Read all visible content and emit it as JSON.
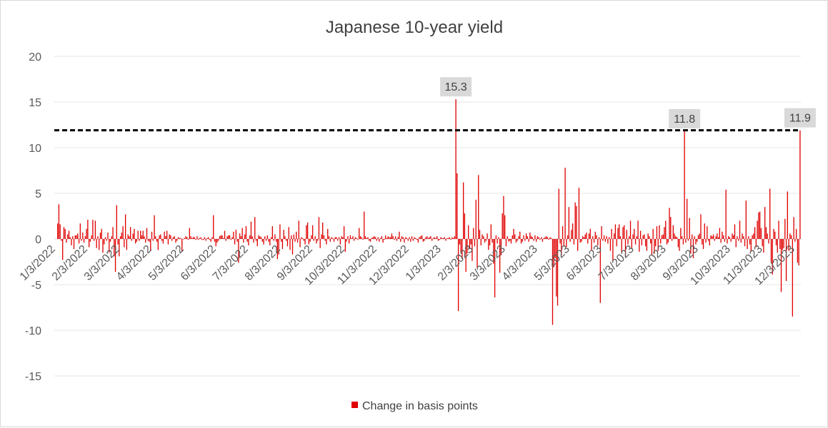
{
  "chart_data": {
    "type": "bar",
    "title": "Japanese 10-year yield",
    "xlabel": "",
    "ylabel": "",
    "ylim": [
      -15,
      20
    ],
    "yticks": [
      20,
      15,
      10,
      5,
      0,
      -5,
      -10,
      -15
    ],
    "grid": true,
    "legend_position": "bottom",
    "x_tick_labels": [
      "1/3/2022",
      "2/3/2022",
      "3/3/2022",
      "4/3/2022",
      "5/3/2022",
      "6/3/2022",
      "7/3/2022",
      "8/3/2022",
      "9/3/2022",
      "10/3/2022",
      "11/3/2022",
      "12/3/2022",
      "1/3/2023",
      "2/3/2023",
      "3/3/2023",
      "4/3/2023",
      "5/3/2023",
      "6/3/2023",
      "7/3/2023",
      "8/3/2023",
      "9/3/2023",
      "10/3/2023",
      "11/3/2023",
      "12/3/2023"
    ],
    "series": [
      {
        "name": "Change in basis points",
        "color": "#e00000",
        "values": [
          1.7,
          3.8,
          1.6,
          -0.2,
          -2.3,
          1.3,
          1.1,
          -0.4,
          0.5,
          0.9,
          0.2,
          -0.7,
          0.3,
          -1.1,
          0.4,
          0.4,
          0.6,
          -0.5,
          1.7,
          -0.2,
          0.7,
          -0.4,
          0.3,
          1.1,
          2.1,
          -0.9,
          -0.3,
          0.4,
          2.1,
          -0.2,
          2.0,
          -1.0,
          0.3,
          -1.2,
          0.7,
          1.1,
          -1.5,
          -0.6,
          0.2,
          -0.2,
          0.7,
          -1.5,
          -0.3,
          0.3,
          1.3,
          -1.9,
          -3.6,
          3.7,
          -0.6,
          -1.9,
          0.3,
          0.7,
          1.4,
          -0.9,
          2.7,
          -1.2,
          0.5,
          0.3,
          1.3,
          -0.2,
          0.6,
          1.1,
          -0.5,
          -0.3,
          0.9,
          -0.2,
          0.9,
          0.4,
          0.9,
          0.3,
          -0.4,
          1.2,
          -0.2,
          -0.3,
          -1.3,
          0.8,
          -0.2,
          2.6,
          0.3,
          -0.3,
          -1.2,
          0.4,
          0.5,
          -0.2,
          -0.5,
          0.8,
          0.3,
          0.9,
          -0.6,
          0.5,
          0.4,
          -0.2,
          0.2,
          0.3,
          -0.4,
          -0.2,
          0.2,
          0.1,
          0.1,
          -1.4,
          0.0,
          0.1,
          0.3,
          0.2,
          -0.1,
          1.2,
          0.3,
          0.1,
          0.2,
          0.2,
          -0.1,
          0.3,
          -0.1,
          0.1,
          0.2,
          -0.1,
          -0.1,
          0.2,
          -0.2,
          0.1,
          0.2,
          -0.1,
          -0.3,
          0.2,
          2.6,
          -0.3,
          -0.8,
          -0.4,
          -0.2,
          0.3,
          0.4,
          0.4,
          0.1,
          0.9,
          -0.2,
          0.3,
          0.4,
          0.4,
          -0.1,
          0.2,
          0.8,
          -0.6,
          1.0,
          -0.3,
          -2.6,
          0.6,
          0.3,
          1.2,
          -0.4,
          0.5,
          1.4,
          -0.3,
          -0.7,
          0.4,
          1.9,
          0.3,
          -0.4,
          2.4,
          -0.2,
          -0.8,
          0.4,
          0.3,
          0.2,
          -0.3,
          -0.6,
          0.3,
          -0.2,
          0.4,
          -0.3,
          -0.7,
          0.2,
          1.4,
          -0.2,
          0.5,
          -0.3,
          -2.2,
          -1.7,
          1.6,
          -0.3,
          -1.1,
          1.0,
          0.3,
          -0.2,
          -0.8,
          1.3,
          -1.2,
          0.4,
          -1.7,
          0.5,
          -0.3,
          0.8,
          -0.4,
          2.0,
          -0.9,
          0.2,
          0.1,
          -0.2,
          -0.6,
          1.5,
          1.8,
          -0.6,
          -0.3,
          0.4,
          1.5,
          -0.2,
          0.3,
          -0.5,
          -0.2,
          2.4,
          -1.0,
          0.5,
          1.8,
          0.4,
          -0.2,
          -0.6,
          1.1,
          0.3,
          -0.3,
          0.2,
          0.1,
          -0.3,
          0.2,
          0.2,
          -0.2,
          0.2,
          -0.6,
          0.3,
          0.2,
          1.4,
          -1.4,
          -0.3,
          0.3,
          -0.5,
          0.4,
          0.1,
          0.3,
          -0.2,
          0.2,
          0.1,
          -0.1,
          1.2,
          0.3,
          0.2,
          -0.1,
          3.0,
          0.3,
          0.1,
          0.2,
          -0.2,
          -0.3,
          0.1,
          0.2,
          0.3,
          0.2,
          -0.2,
          0.2,
          -0.3,
          0.1,
          0.3,
          -0.4,
          -0.1,
          0.4,
          0.1,
          0.3,
          0.2,
          0.2,
          0.6,
          0.3,
          -0.1,
          0.3,
          -0.2,
          0.2,
          0.8,
          -0.3,
          0.3,
          0.2,
          -0.4,
          0.2,
          0.1,
          -0.2,
          0.2,
          -0.3,
          0.3,
          -0.2,
          0.2,
          0.1,
          -0.1,
          -0.4,
          0.2,
          0.3,
          0.4,
          -0.3,
          -0.2,
          0.2,
          0.3,
          0.1,
          0.2,
          0.3,
          -0.2,
          0.1,
          0.2,
          0.1,
          0.3,
          -0.2,
          -0.1,
          0.2,
          0.1,
          0.1,
          0.2,
          -0.2,
          0.1,
          0.1,
          0.2,
          -0.1,
          0.2,
          0.1,
          0.3,
          15.3,
          7.2,
          -7.9,
          -0.6,
          -1.5,
          -2.2,
          6.2,
          2.8,
          -3.6,
          -1.6,
          1.5,
          -1.1,
          -0.6,
          -2.4,
          1.2,
          -0.8,
          4.3,
          -3.1,
          7.0,
          1.0,
          -0.7,
          0.5,
          0.3,
          -0.4,
          -0.2,
          0.6,
          -1.2,
          -0.7,
          1.6,
          -0.4,
          -2.7,
          -6.4,
          0.4,
          -0.5,
          0.2,
          -3.7,
          -1.8,
          2.8,
          4.7,
          2.6,
          -0.8,
          0.3,
          -0.3,
          -0.2,
          -0.5,
          0.4,
          1.1,
          0.5,
          -0.4,
          -0.2,
          0.3,
          0.8,
          -0.5,
          -0.3,
          0.4,
          -0.2,
          0.6,
          0.3,
          -0.3,
          0.7,
          0.3,
          0.2,
          -0.2,
          0.4,
          -0.3,
          0.3,
          0.2,
          -0.1,
          0.2,
          -0.3,
          0.1,
          0.2,
          0.3,
          0.2,
          -0.1,
          0.2,
          0.1,
          -9.4,
          -3.1,
          -2.1,
          -6.3,
          -7.3,
          5.5,
          -0.5,
          -1.8,
          1.4,
          -0.8,
          7.8,
          -0.9,
          0.4,
          3.5,
          -0.3,
          1.0,
          1.7,
          -0.6,
          4.0,
          3.6,
          -1.3,
          5.6,
          -0.4,
          -0.3,
          0.3,
          0.2,
          0.5,
          0.7,
          -0.5,
          0.6,
          1.1,
          -1.2,
          0.3,
          -0.4,
          0.8,
          0.4,
          -0.7,
          0.2,
          -7.0,
          1.4,
          -0.2,
          0.4,
          -0.3,
          0.3,
          -0.5,
          0.2,
          -1.3,
          1.1,
          -2.4,
          0.6,
          1.6,
          -0.8,
          1.2,
          1.6,
          0.3,
          -1.5,
          1.3,
          1.5,
          -2.0,
          1.0,
          -0.6,
          0.3,
          2.0,
          -1.1,
          0.5,
          1.1,
          -0.6,
          0.3,
          2.0,
          -1.4,
          0.9,
          -0.7,
          0.4,
          0.5,
          -0.8,
          -1.3,
          0.6,
          0.3,
          -0.5,
          -1.7,
          1.1,
          -1.6,
          -0.8,
          1.4,
          -1.3,
          1.5,
          -0.5,
          0.4,
          0.5,
          1.3,
          2.0,
          -0.6,
          -0.4,
          3.4,
          2.4,
          -0.2,
          1.5,
          0.6,
          0.3,
          0.2,
          -0.9,
          -1.3,
          1.2,
          0.3,
          -0.6,
          11.8,
          -0.4,
          4.4,
          -0.2,
          2.3,
          -1.6,
          0.5,
          -2.1,
          0.3,
          -0.6,
          -0.3,
          0.4,
          0.6,
          2.7,
          -0.6,
          -1.1,
          1.7,
          -0.4,
          1.4,
          -0.2,
          -0.7,
          0.4,
          0.3,
          0.5,
          -0.2,
          0.3,
          0.6,
          0.2,
          1.2,
          -0.4,
          0.8,
          0.4,
          -0.3,
          5.4,
          -0.5,
          0.3,
          0.2,
          -0.3,
          0.6,
          0.4,
          1.6,
          -0.9,
          0.3,
          -0.2,
          2.0,
          -0.4,
          0.6,
          0.3,
          -0.8,
          4.2,
          -1.1,
          0.3,
          -0.6,
          -1.4,
          0.4,
          0.6,
          1.3,
          -0.9,
          2.0,
          2.9,
          3.0,
          1.2,
          -0.8,
          -1.5,
          3.5,
          1.3,
          0.6,
          -0.5,
          5.5,
          -2.6,
          -3.9,
          1.1,
          0.8,
          -0.7,
          -1.5,
          2.0,
          -1.1,
          -5.8,
          -1.2,
          -1.0,
          2.2,
          -4.6,
          5.2,
          -1.3,
          0.6,
          0.4,
          -8.5,
          2.4,
          -0.3,
          1.1,
          -2.6,
          -2.9,
          11.9
        ]
      }
    ],
    "reference_line": {
      "value": 11.9,
      "style": "dashed",
      "color": "#000000"
    },
    "data_labels": [
      {
        "label": "15.3",
        "value": 15.3
      },
      {
        "label": "11.8",
        "value": 11.8
      },
      {
        "label": "11.9",
        "value": 11.9
      }
    ]
  }
}
